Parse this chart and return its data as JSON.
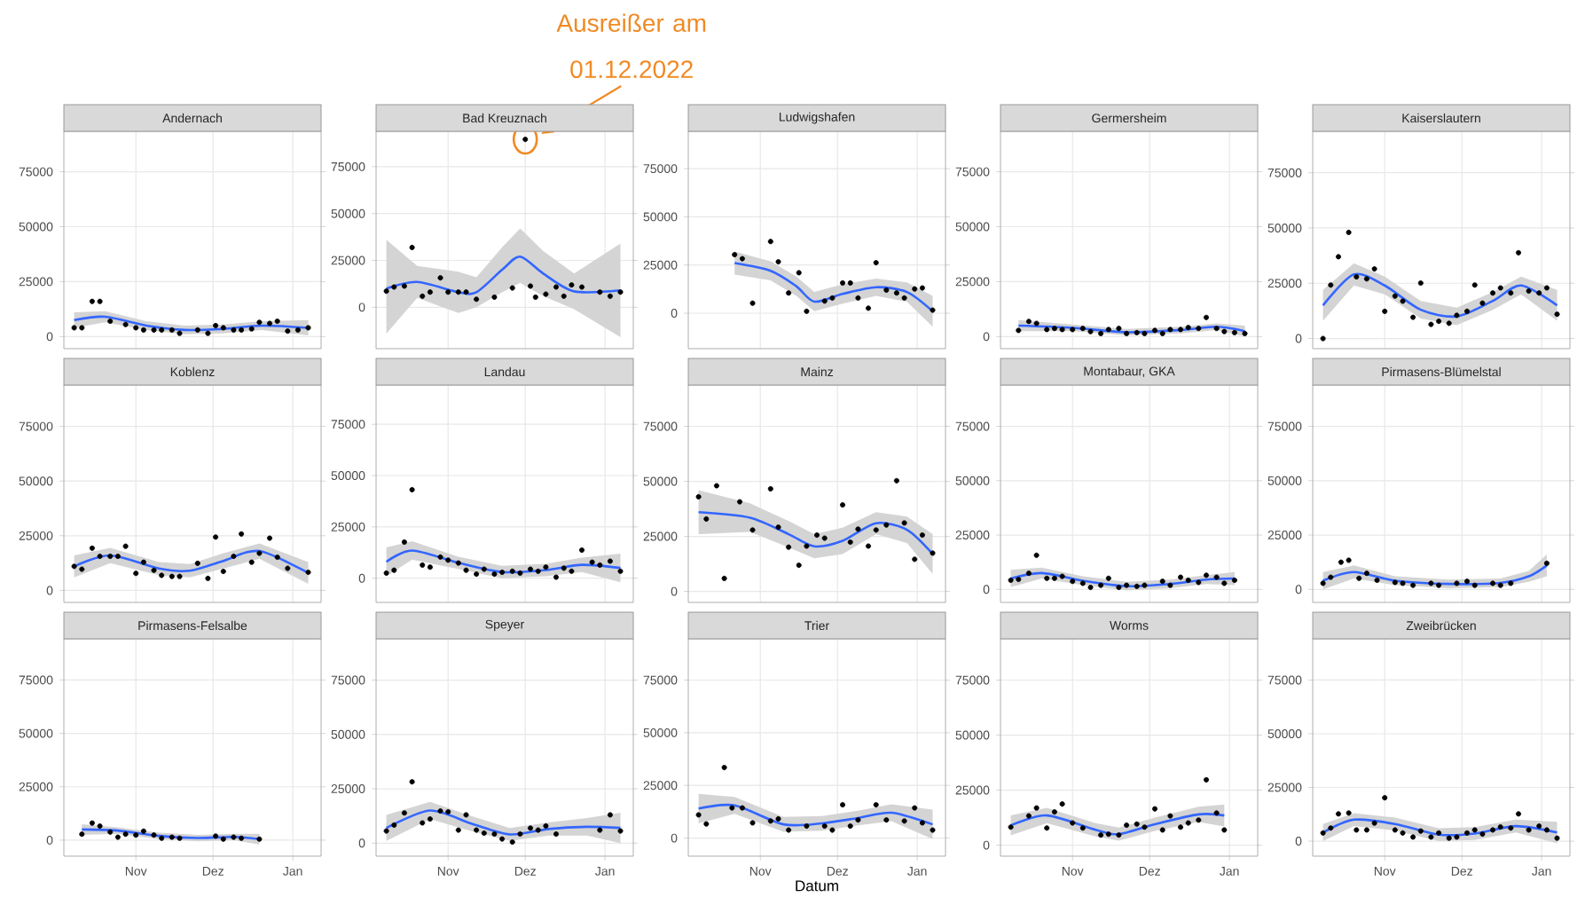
{
  "chart_data": [
    {
      "type": "scatter",
      "title": "Andernach",
      "xlim": [
        "2022-10-04",
        "2023-01-12"
      ],
      "ylim": [
        -5500,
        93400
      ],
      "xticks": [
        {
          "value": "2022-11-01",
          "label": null
        },
        {
          "value": "2022-12-01",
          "label": null
        },
        {
          "value": "2023-01-01",
          "label": null
        }
      ],
      "yticks": [
        0,
        25000,
        50000,
        75000
      ],
      "grid": true,
      "tick_labels": "y",
      "series": [
        {
          "type": "scatter",
          "color": "#000000",
          "x": [
            "2022-10-08",
            "2022-10-11",
            "2022-10-15",
            "2022-10-18",
            "2022-10-22",
            "2022-10-28",
            "2022-11-01",
            "2022-11-04",
            "2022-11-08",
            "2022-11-11",
            "2022-11-15",
            "2022-11-18",
            "2022-11-25",
            "2022-11-29",
            "2022-12-02",
            "2022-12-05",
            "2022-12-09",
            "2022-12-12",
            "2022-12-16",
            "2022-12-19",
            "2022-12-23",
            "2022-12-26",
            "2022-12-30",
            "2023-01-03",
            "2023-01-07"
          ],
          "values": [
            4000,
            4000,
            16000,
            16000,
            7000,
            5500,
            4000,
            3000,
            3000,
            3000,
            3000,
            1500,
            3000,
            1500,
            5000,
            4000,
            3000,
            3000,
            3500,
            6500,
            6000,
            7000,
            2500,
            3000,
            4000
          ]
        },
        {
          "type": "line",
          "color": "#3366ff",
          "x": [
            "2022-10-08",
            "2022-10-20",
            "2022-11-05",
            "2022-11-20",
            "2022-12-05",
            "2022-12-20",
            "2023-01-07"
          ],
          "values": [
            7500,
            9000,
            5000,
            3000,
            3500,
            5000,
            4000
          ],
          "lower": [
            4000,
            6500,
            3000,
            1000,
            1500,
            3000,
            500
          ],
          "upper": [
            11000,
            11500,
            7000,
            5000,
            5500,
            7000,
            7500
          ]
        }
      ]
    },
    {
      "type": "scatter",
      "title": "Bad Kreuznach",
      "xlim": [
        "2022-10-04",
        "2023-01-12"
      ],
      "ylim": [
        -22100,
        93900
      ],
      "xticks": [
        {
          "value": "2022-11-01",
          "label": null
        },
        {
          "value": "2022-12-01",
          "label": null
        },
        {
          "value": "2023-01-01",
          "label": null
        }
      ],
      "yticks": [
        0,
        25000,
        50000,
        75000
      ],
      "grid": true,
      "tick_labels": "y",
      "annotations": [
        {
          "text": "Ausreißer am 01.12.2022",
          "x": "2022-12-01",
          "y": 89600
        }
      ],
      "series": [
        {
          "type": "scatter",
          "color": "#000000",
          "x": [
            "2022-10-08",
            "2022-10-11",
            "2022-10-15",
            "2022-10-18",
            "2022-10-22",
            "2022-10-25",
            "2022-10-29",
            "2022-11-01",
            "2022-11-05",
            "2022-11-08",
            "2022-11-12",
            "2022-11-19",
            "2022-11-26",
            "2022-12-01",
            "2022-12-03",
            "2022-12-05",
            "2022-12-09",
            "2022-12-13",
            "2022-12-16",
            "2022-12-19",
            "2022-12-23",
            "2022-12-30",
            "2023-01-03",
            "2023-01-07"
          ],
          "values": [
            8600,
            10800,
            11300,
            31900,
            5900,
            8100,
            15700,
            8100,
            8100,
            8100,
            4300,
            5400,
            10300,
            89600,
            11300,
            5400,
            7000,
            10800,
            5900,
            11900,
            10800,
            8100,
            5900,
            8100
          ]
        },
        {
          "type": "line",
          "color": "#3366ff",
          "x": [
            "2022-10-08",
            "2022-10-20",
            "2022-11-05",
            "2022-11-12",
            "2022-11-22",
            "2022-11-29",
            "2022-12-08",
            "2022-12-20",
            "2023-01-07"
          ],
          "values": [
            10000,
            13500,
            8000,
            8000,
            20000,
            27000,
            18000,
            8500,
            9000
          ],
          "lower": [
            -14000,
            5000,
            -3000,
            0,
            8000,
            13000,
            6000,
            -1000,
            -16000
          ],
          "upper": [
            36000,
            22000,
            19000,
            16000,
            32000,
            42000,
            30000,
            18000,
            34000
          ]
        }
      ]
    },
    {
      "type": "scatter",
      "title": "Ludwigshafen",
      "xlim": [
        "2022-10-04",
        "2023-01-12"
      ],
      "ylim": [
        -18400,
        94400
      ],
      "xticks": [
        {
          "value": "2022-11-01",
          "label": null
        },
        {
          "value": "2022-12-01",
          "label": null
        },
        {
          "value": "2023-01-01",
          "label": null
        }
      ],
      "yticks": [
        0,
        25000,
        50000,
        75000
      ],
      "grid": true,
      "tick_labels": "y",
      "series": [
        {
          "type": "scatter",
          "color": "#000000",
          "x": [
            "2022-10-22",
            "2022-10-25",
            "2022-10-29",
            "2022-11-05",
            "2022-11-08",
            "2022-11-12",
            "2022-11-16",
            "2022-11-19",
            "2022-11-26",
            "2022-11-29",
            "2022-12-03",
            "2022-12-06",
            "2022-12-09",
            "2022-12-13",
            "2022-12-16",
            "2022-12-20",
            "2022-12-24",
            "2022-12-27",
            "2022-12-31",
            "2023-01-03",
            "2023-01-07"
          ],
          "values": [
            30400,
            28300,
            5200,
            37200,
            26700,
            10500,
            21000,
            1000,
            6300,
            7900,
            15700,
            15700,
            7900,
            2600,
            26200,
            12000,
            10500,
            7900,
            12600,
            13100,
            1600
          ]
        },
        {
          "type": "line",
          "color": "#3366ff",
          "x": [
            "2022-10-22",
            "2022-11-05",
            "2022-11-15",
            "2022-11-22",
            "2022-12-03",
            "2022-12-16",
            "2022-12-28",
            "2023-01-07"
          ],
          "values": [
            26000,
            22000,
            14000,
            6000,
            10000,
            13500,
            11000,
            1000
          ],
          "lower": [
            20000,
            17000,
            9000,
            1000,
            5000,
            9000,
            6000,
            -7000
          ],
          "upper": [
            32000,
            27000,
            19000,
            11000,
            15000,
            18000,
            16000,
            9000
          ]
        }
      ]
    },
    {
      "type": "scatter",
      "title": "Germersheim",
      "xlim": [
        "2022-10-04",
        "2023-01-12"
      ],
      "ylim": [
        -5500,
        93400
      ],
      "xticks": [
        {
          "value": "2022-11-01",
          "label": null
        },
        {
          "value": "2022-12-01",
          "label": null
        },
        {
          "value": "2023-01-01",
          "label": null
        }
      ],
      "yticks": [
        0,
        25000,
        50000,
        75000
      ],
      "grid": true,
      "tick_labels": "y",
      "series": [
        {
          "type": "scatter",
          "color": "#000000",
          "x": [
            "2022-10-11",
            "2022-10-15",
            "2022-10-18",
            "2022-10-22",
            "2022-10-25",
            "2022-10-28",
            "2022-11-01",
            "2022-11-05",
            "2022-11-08",
            "2022-11-12",
            "2022-11-15",
            "2022-11-19",
            "2022-11-22",
            "2022-11-26",
            "2022-11-29",
            "2022-12-03",
            "2022-12-06",
            "2022-12-09",
            "2022-12-13",
            "2022-12-16",
            "2022-12-20",
            "2022-12-23",
            "2022-12-27",
            "2022-12-30",
            "2023-01-03",
            "2023-01-07"
          ],
          "values": [
            2800,
            6900,
            6000,
            3200,
            3700,
            3200,
            3200,
            3700,
            2300,
            1400,
            3200,
            3700,
            1400,
            1800,
            1400,
            2800,
            1400,
            3200,
            3200,
            4100,
            3700,
            8700,
            3700,
            2300,
            1800,
            1400
          ]
        },
        {
          "type": "line",
          "color": "#3366ff",
          "x": [
            "2022-10-11",
            "2022-11-01",
            "2022-11-22",
            "2022-12-13",
            "2022-12-27",
            "2023-01-07"
          ],
          "values": [
            5000,
            4000,
            2000,
            3000,
            4500,
            2500
          ],
          "lower": [
            2500,
            2500,
            500,
            1500,
            3000,
            0
          ],
          "upper": [
            7500,
            5500,
            3500,
            4500,
            6000,
            5000
          ]
        }
      ]
    },
    {
      "type": "scatter",
      "title": "Kaiserslautern",
      "xlim": [
        "2022-10-04",
        "2023-01-12"
      ],
      "ylim": [
        -4600,
        93750
      ],
      "xticks": [
        {
          "value": "2022-11-01",
          "label": null
        },
        {
          "value": "2022-12-01",
          "label": null
        },
        {
          "value": "2023-01-01",
          "label": null
        }
      ],
      "yticks": [
        0,
        25000,
        50000,
        75000
      ],
      "grid": true,
      "tick_labels": "y",
      "series": [
        {
          "type": "scatter",
          "color": "#000000",
          "x": [
            "2022-10-08",
            "2022-10-11",
            "2022-10-14",
            "2022-10-18",
            "2022-10-21",
            "2022-10-25",
            "2022-10-28",
            "2022-11-01",
            "2022-11-05",
            "2022-11-08",
            "2022-11-12",
            "2022-11-15",
            "2022-11-19",
            "2022-11-22",
            "2022-11-26",
            "2022-11-29",
            "2022-12-03",
            "2022-12-06",
            "2022-12-09",
            "2022-12-13",
            "2022-12-16",
            "2022-12-20",
            "2022-12-23",
            "2022-12-27",
            "2022-12-31",
            "2023-01-03",
            "2023-01-07"
          ],
          "values": [
            0,
            24200,
            37000,
            48000,
            27900,
            27000,
            31500,
            12300,
            19200,
            16900,
            9600,
            25100,
            6400,
            7800,
            6900,
            10500,
            12300,
            24200,
            16000,
            20600,
            22900,
            20600,
            38800,
            21500,
            20600,
            22900,
            11000
          ]
        },
        {
          "type": "line",
          "color": "#3366ff",
          "x": [
            "2022-10-08",
            "2022-10-20",
            "2022-11-01",
            "2022-11-15",
            "2022-11-29",
            "2022-12-13",
            "2022-12-24",
            "2023-01-07"
          ],
          "values": [
            15000,
            29000,
            24000,
            13000,
            10000,
            17000,
            24000,
            15000
          ],
          "lower": [
            8000,
            24000,
            20000,
            9000,
            6000,
            13000,
            20000,
            8000
          ],
          "upper": [
            22000,
            34000,
            28000,
            17000,
            14000,
            21000,
            28000,
            22000
          ]
        }
      ]
    },
    {
      "type": "scatter",
      "title": "Koblenz",
      "xlim": [
        "2022-10-04",
        "2023-01-12"
      ],
      "ylim": [
        -5500,
        93900
      ],
      "xticks": [
        {
          "value": "2022-11-01",
          "label": null
        },
        {
          "value": "2022-12-01",
          "label": null
        },
        {
          "value": "2023-01-01",
          "label": null
        }
      ],
      "yticks": [
        0,
        25000,
        50000,
        75000
      ],
      "grid": true,
      "tick_labels": "y",
      "series": [
        {
          "type": "scatter",
          "color": "#000000",
          "x": [
            "2022-10-08",
            "2022-10-11",
            "2022-10-15",
            "2022-10-18",
            "2022-10-22",
            "2022-10-25",
            "2022-10-28",
            "2022-11-01",
            "2022-11-04",
            "2022-11-08",
            "2022-11-11",
            "2022-11-15",
            "2022-11-18",
            "2022-11-25",
            "2022-11-29",
            "2022-12-02",
            "2022-12-05",
            "2022-12-09",
            "2022-12-12",
            "2022-12-16",
            "2022-12-19",
            "2022-12-23",
            "2022-12-26",
            "2022-12-30",
            "2023-01-07"
          ],
          "values": [
            11000,
            9700,
            19300,
            15600,
            15600,
            15600,
            20200,
            7800,
            12900,
            9200,
            6900,
            6400,
            6400,
            12400,
            5500,
            24400,
            8700,
            15600,
            25800,
            12900,
            17000,
            23900,
            15200,
            10100,
            8300
          ]
        },
        {
          "type": "line",
          "color": "#3366ff",
          "x": [
            "2022-10-08",
            "2022-10-22",
            "2022-11-10",
            "2022-11-22",
            "2022-12-05",
            "2022-12-19",
            "2023-01-07"
          ],
          "values": [
            11000,
            16000,
            10000,
            9000,
            13500,
            18000,
            8000
          ],
          "lower": [
            6000,
            12500,
            7000,
            6000,
            10000,
            14500,
            3000
          ],
          "upper": [
            16000,
            19500,
            13000,
            12000,
            17000,
            21500,
            13000
          ]
        }
      ]
    },
    {
      "type": "scatter",
      "title": "Landau",
      "xlim": [
        "2022-10-04",
        "2023-01-12"
      ],
      "ylim": [
        -11800,
        94100
      ],
      "xticks": [
        {
          "value": "2022-11-01",
          "label": null
        },
        {
          "value": "2022-12-01",
          "label": null
        },
        {
          "value": "2023-01-01",
          "label": null
        }
      ],
      "yticks": [
        0,
        25000,
        50000,
        75000
      ],
      "grid": true,
      "tick_labels": "y",
      "series": [
        {
          "type": "scatter",
          "color": "#000000",
          "x": [
            "2022-10-08",
            "2022-10-11",
            "2022-10-15",
            "2022-10-18",
            "2022-10-22",
            "2022-10-25",
            "2022-10-29",
            "2022-11-01",
            "2022-11-05",
            "2022-11-08",
            "2022-11-12",
            "2022-11-15",
            "2022-11-19",
            "2022-11-22",
            "2022-11-26",
            "2022-11-29",
            "2022-12-03",
            "2022-12-06",
            "2022-12-09",
            "2022-12-13",
            "2022-12-16",
            "2022-12-19",
            "2022-12-23",
            "2022-12-27",
            "2022-12-30",
            "2023-01-03",
            "2023-01-07"
          ],
          "values": [
            2500,
            3900,
            17600,
            43100,
            6400,
            5400,
            10300,
            8800,
            7400,
            3900,
            2000,
            4400,
            2000,
            2900,
            3400,
            2500,
            4400,
            3400,
            5400,
            500,
            4900,
            3400,
            13700,
            7800,
            6400,
            8300,
            3400
          ]
        },
        {
          "type": "line",
          "color": "#3366ff",
          "x": [
            "2022-10-08",
            "2022-10-18",
            "2022-11-05",
            "2022-11-22",
            "2022-12-09",
            "2022-12-23",
            "2023-01-07"
          ],
          "values": [
            8000,
            13500,
            7500,
            3000,
            4000,
            6500,
            5000
          ],
          "lower": [
            1000,
            9000,
            4500,
            0,
            1000,
            3000,
            -2000
          ],
          "upper": [
            15000,
            18000,
            10500,
            6000,
            7000,
            10000,
            12000
          ]
        }
      ]
    },
    {
      "type": "scatter",
      "title": "Mainz",
      "xlim": [
        "2022-10-04",
        "2023-01-12"
      ],
      "ylim": [
        -5000,
        93750
      ],
      "xticks": [
        {
          "value": "2022-11-01",
          "label": null
        },
        {
          "value": "2022-12-01",
          "label": null
        },
        {
          "value": "2023-01-01",
          "label": null
        }
      ],
      "yticks": [
        0,
        25000,
        50000,
        75000
      ],
      "grid": true,
      "tick_labels": "y",
      "series": [
        {
          "type": "scatter",
          "color": "#000000",
          "x": [
            "2022-10-08",
            "2022-10-11",
            "2022-10-15",
            "2022-10-18",
            "2022-10-24",
            "2022-10-29",
            "2022-11-05",
            "2022-11-08",
            "2022-11-12",
            "2022-11-16",
            "2022-11-19",
            "2022-11-23",
            "2022-11-26",
            "2022-12-03",
            "2022-12-06",
            "2022-12-09",
            "2022-12-13",
            "2022-12-16",
            "2022-12-20",
            "2022-12-24",
            "2022-12-27",
            "2022-12-31",
            "2023-01-03",
            "2023-01-07"
          ],
          "values": [
            43000,
            32900,
            48000,
            5900,
            40700,
            27900,
            46600,
            29200,
            20100,
            11900,
            20600,
            25600,
            24200,
            39300,
            22400,
            28300,
            20600,
            27900,
            30200,
            50300,
            31100,
            14600,
            25600,
            17400
          ]
        },
        {
          "type": "line",
          "color": "#3366ff",
          "x": [
            "2022-10-08",
            "2022-10-28",
            "2022-11-12",
            "2022-11-22",
            "2022-12-03",
            "2022-12-16",
            "2022-12-28",
            "2023-01-07"
          ],
          "values": [
            36000,
            33500,
            26000,
            20500,
            23000,
            31000,
            28000,
            17000
          ],
          "lower": [
            26000,
            27000,
            20000,
            15000,
            17000,
            26000,
            22000,
            8000
          ],
          "upper": [
            46000,
            40000,
            32000,
            26000,
            29000,
            36000,
            34000,
            26000
          ]
        }
      ]
    },
    {
      "type": "scatter",
      "title": "Montabaur, GKA",
      "xlim": [
        "2022-10-04",
        "2023-01-12"
      ],
      "ylim": [
        -6000,
        94000
      ],
      "xticks": [
        {
          "value": "2022-11-01",
          "label": null
        },
        {
          "value": "2022-12-01",
          "label": null
        },
        {
          "value": "2023-01-01",
          "label": null
        }
      ],
      "yticks": [
        0,
        25000,
        50000,
        75000
      ],
      "grid": true,
      "tick_labels": "y",
      "series": [
        {
          "type": "scatter",
          "color": "#000000",
          "x": [
            "2022-10-08",
            "2022-10-11",
            "2022-10-15",
            "2022-10-18",
            "2022-10-22",
            "2022-10-25",
            "2022-10-28",
            "2022-11-01",
            "2022-11-05",
            "2022-11-08",
            "2022-11-12",
            "2022-11-15",
            "2022-11-19",
            "2022-11-22",
            "2022-11-26",
            "2022-11-29",
            "2022-12-06",
            "2022-12-09",
            "2022-12-13",
            "2022-12-16",
            "2022-12-20",
            "2022-12-23",
            "2022-12-27",
            "2022-12-30",
            "2023-01-03"
          ],
          "values": [
            4200,
            4600,
            7400,
            15700,
            5100,
            5100,
            6000,
            3700,
            2800,
            900,
            1900,
            5100,
            900,
            1900,
            1400,
            1900,
            3700,
            1900,
            5600,
            4200,
            3200,
            6500,
            5600,
            2800,
            4200
          ]
        },
        {
          "type": "line",
          "color": "#3366ff",
          "x": [
            "2022-10-08",
            "2022-10-20",
            "2022-11-05",
            "2022-11-22",
            "2022-12-09",
            "2022-12-23",
            "2023-01-03"
          ],
          "values": [
            5000,
            7500,
            4000,
            1500,
            2500,
            4500,
            5000
          ],
          "lower": [
            1000,
            5000,
            2000,
            -500,
            500,
            2500,
            2000
          ],
          "upper": [
            9000,
            10000,
            6000,
            3500,
            4500,
            6500,
            8000
          ]
        }
      ]
    },
    {
      "type": "scatter",
      "title": "Pirmasens-Blümelstal",
      "xlim": [
        "2022-10-04",
        "2023-01-12"
      ],
      "ylim": [
        -6000,
        94000
      ],
      "xticks": [
        {
          "value": "2022-11-01",
          "label": null
        },
        {
          "value": "2022-12-01",
          "label": null
        },
        {
          "value": "2023-01-01",
          "label": null
        }
      ],
      "yticks": [
        0,
        25000,
        50000,
        75000
      ],
      "grid": true,
      "tick_labels": "y",
      "series": [
        {
          "type": "scatter",
          "color": "#000000",
          "x": [
            "2022-10-08",
            "2022-10-11",
            "2022-10-15",
            "2022-10-18",
            "2022-10-22",
            "2022-10-25",
            "2022-10-29",
            "2022-11-05",
            "2022-11-08",
            "2022-11-12",
            "2022-11-19",
            "2022-11-22",
            "2022-11-29",
            "2022-12-03",
            "2022-12-06",
            "2022-12-13",
            "2022-12-16",
            "2022-12-20",
            "2023-01-03"
          ],
          "values": [
            2800,
            5600,
            12500,
            13400,
            5100,
            7400,
            4200,
            3200,
            2800,
            1900,
            2800,
            1900,
            2800,
            3700,
            1900,
            2800,
            1900,
            2800,
            12000
          ]
        },
        {
          "type": "line",
          "color": "#3366ff",
          "x": [
            "2022-10-08",
            "2022-10-20",
            "2022-11-05",
            "2022-11-26",
            "2022-12-16",
            "2022-12-27",
            "2023-01-03"
          ],
          "values": [
            4000,
            8000,
            4000,
            2500,
            3000,
            6000,
            11000
          ],
          "lower": [
            0,
            5000,
            2000,
            500,
            1000,
            3500,
            6000
          ],
          "upper": [
            8000,
            11000,
            6000,
            4500,
            5000,
            8500,
            16000
          ]
        }
      ]
    },
    {
      "type": "scatter",
      "title": "Pirmasens-Felsalbe",
      "xlim": [
        "2022-10-04",
        "2023-01-12"
      ],
      "ylim": [
        -7500,
        94300
      ],
      "xticks": [
        {
          "value": "2022-11-01",
          "label": "Nov"
        },
        {
          "value": "2022-12-01",
          "label": "Dez"
        },
        {
          "value": "2023-01-01",
          "label": "Jan"
        }
      ],
      "yticks": [
        0,
        25000,
        50000,
        75000
      ],
      "grid": true,
      "series": [
        {
          "type": "scatter",
          "color": "#000000",
          "x": [
            "2022-10-11",
            "2022-10-15",
            "2022-10-18",
            "2022-10-22",
            "2022-10-25",
            "2022-10-28",
            "2022-11-01",
            "2022-11-04",
            "2022-11-08",
            "2022-11-11",
            "2022-11-15",
            "2022-11-18",
            "2022-12-02",
            "2022-12-05",
            "2022-12-09",
            "2022-12-12",
            "2022-12-19"
          ],
          "values": [
            2800,
            8000,
            6600,
            3800,
            1400,
            2800,
            2400,
            4200,
            2400,
            900,
            1400,
            900,
            1900,
            500,
            1400,
            900,
            500
          ]
        },
        {
          "type": "line",
          "color": "#3366ff",
          "x": [
            "2022-10-11",
            "2022-10-25",
            "2022-11-10",
            "2022-11-25",
            "2022-12-09",
            "2022-12-19"
          ],
          "values": [
            5000,
            4500,
            2000,
            1000,
            1500,
            500
          ],
          "lower": [
            2500,
            3000,
            500,
            -500,
            0,
            -2000
          ],
          "upper": [
            7500,
            6000,
            3500,
            2500,
            3000,
            3000
          ]
        }
      ]
    },
    {
      "type": "scatter",
      "title": "Speyer",
      "xlim": [
        "2022-10-04",
        "2023-01-12"
      ],
      "ylim": [
        -6000,
        94000
      ],
      "xticks": [
        {
          "value": "2022-11-01",
          "label": "Nov"
        },
        {
          "value": "2022-12-01",
          "label": "Dez"
        },
        {
          "value": "2023-01-01",
          "label": "Jan"
        }
      ],
      "yticks": [
        0,
        25000,
        50000,
        75000
      ],
      "grid": true,
      "series": [
        {
          "type": "scatter",
          "color": "#000000",
          "x": [
            "2022-10-08",
            "2022-10-11",
            "2022-10-15",
            "2022-10-18",
            "2022-10-22",
            "2022-10-25",
            "2022-10-29",
            "2022-11-01",
            "2022-11-05",
            "2022-11-08",
            "2022-11-12",
            "2022-11-15",
            "2022-11-19",
            "2022-11-22",
            "2022-11-26",
            "2022-11-29",
            "2022-12-03",
            "2022-12-06",
            "2022-12-09",
            "2022-12-13",
            "2022-12-30",
            "2023-01-03",
            "2023-01-07"
          ],
          "values": [
            5600,
            8300,
            13900,
            28200,
            9300,
            11100,
            14800,
            14400,
            6000,
            13000,
            6000,
            4600,
            4200,
            1900,
            500,
            4200,
            6900,
            6000,
            7900,
            4200,
            6000,
            13000,
            5600
          ]
        },
        {
          "type": "line",
          "color": "#3366ff",
          "x": [
            "2022-10-08",
            "2022-10-25",
            "2022-11-10",
            "2022-11-25",
            "2022-12-10",
            "2022-12-25",
            "2023-01-07"
          ],
          "values": [
            7000,
            15000,
            9000,
            4000,
            6500,
            7500,
            7000
          ],
          "lower": [
            1000,
            11000,
            5500,
            1000,
            3500,
            3500,
            0
          ],
          "upper": [
            13000,
            19000,
            12500,
            7000,
            9500,
            11500,
            14000
          ]
        }
      ]
    },
    {
      "type": "scatter",
      "title": "Trier",
      "xlabel": "Datum",
      "xlim": [
        "2022-10-04",
        "2023-01-12"
      ],
      "ylim": [
        -8600,
        94600
      ],
      "xticks": [
        {
          "value": "2022-11-01",
          "label": "Nov"
        },
        {
          "value": "2022-12-01",
          "label": "Dez"
        },
        {
          "value": "2023-01-01",
          "label": "Jan"
        }
      ],
      "yticks": [
        0,
        25000,
        50000,
        75000
      ],
      "grid": true,
      "series": [
        {
          "type": "scatter",
          "color": "#000000",
          "x": [
            "2022-10-08",
            "2022-10-11",
            "2022-10-18",
            "2022-10-21",
            "2022-10-25",
            "2022-10-29",
            "2022-11-05",
            "2022-11-08",
            "2022-11-12",
            "2022-11-19",
            "2022-11-26",
            "2022-11-29",
            "2022-12-03",
            "2022-12-06",
            "2022-12-09",
            "2022-12-16",
            "2022-12-20",
            "2022-12-27",
            "2022-12-31",
            "2023-01-03",
            "2023-01-07"
          ],
          "values": [
            11000,
            6700,
            33500,
            14300,
            14300,
            7200,
            8100,
            9100,
            3800,
            5700,
            5700,
            3800,
            15800,
            5700,
            8600,
            15800,
            8600,
            8100,
            14300,
            7200,
            3800
          ]
        },
        {
          "type": "line",
          "color": "#3366ff",
          "x": [
            "2022-10-08",
            "2022-10-22",
            "2022-11-10",
            "2022-11-25",
            "2022-12-09",
            "2022-12-22",
            "2023-01-07"
          ],
          "values": [
            14000,
            15500,
            6500,
            7000,
            9500,
            12000,
            6500
          ],
          "lower": [
            7000,
            11500,
            3000,
            3500,
            6000,
            8000,
            -500
          ],
          "upper": [
            21000,
            19500,
            10000,
            10500,
            13000,
            16000,
            13500
          ]
        }
      ]
    },
    {
      "type": "scatter",
      "title": "Worms",
      "xlim": [
        "2022-10-04",
        "2023-01-12"
      ],
      "ylim": [
        -5000,
        93750
      ],
      "xticks": [
        {
          "value": "2022-11-01",
          "label": "Nov"
        },
        {
          "value": "2022-12-01",
          "label": "Dez"
        },
        {
          "value": "2023-01-01",
          "label": "Jan"
        }
      ],
      "yticks": [
        0,
        25000,
        50000,
        75000
      ],
      "grid": true,
      "series": [
        {
          "type": "scatter",
          "color": "#000000",
          "x": [
            "2022-10-08",
            "2022-10-15",
            "2022-10-18",
            "2022-10-22",
            "2022-10-25",
            "2022-10-28",
            "2022-11-01",
            "2022-11-05",
            "2022-11-12",
            "2022-11-15",
            "2022-11-19",
            "2022-11-22",
            "2022-11-26",
            "2022-11-29",
            "2022-12-03",
            "2022-12-06",
            "2022-12-09",
            "2022-12-13",
            "2022-12-16",
            "2022-12-20",
            "2022-12-23",
            "2022-12-27",
            "2022-12-30"
          ],
          "values": [
            8200,
            13300,
            16900,
            7800,
            15100,
            18700,
            10100,
            7800,
            4600,
            5000,
            4600,
            9100,
            9600,
            8200,
            16500,
            6900,
            13300,
            8200,
            10100,
            11400,
            29700,
            14600,
            6900
          ]
        },
        {
          "type": "line",
          "color": "#3366ff",
          "x": [
            "2022-10-08",
            "2022-10-22",
            "2022-11-10",
            "2022-11-19",
            "2022-12-03",
            "2022-12-20",
            "2022-12-30"
          ],
          "values": [
            9000,
            13500,
            7000,
            5000,
            9500,
            14000,
            13500
          ],
          "lower": [
            4500,
            10000,
            4000,
            2000,
            6500,
            10500,
            8500
          ],
          "upper": [
            13500,
            17000,
            10000,
            8000,
            12500,
            17500,
            18500
          ]
        }
      ]
    },
    {
      "type": "scatter",
      "title": "Zweibrücken",
      "xlim": [
        "2022-10-04",
        "2023-01-12"
      ],
      "ylim": [
        -7000,
        94200
      ],
      "xticks": [
        {
          "value": "2022-11-01",
          "label": "Nov"
        },
        {
          "value": "2022-12-01",
          "label": "Dez"
        },
        {
          "value": "2023-01-01",
          "label": "Jan"
        }
      ],
      "yticks": [
        0,
        25000,
        50000,
        75000
      ],
      "grid": true,
      "series": [
        {
          "type": "scatter",
          "color": "#000000",
          "x": [
            "2022-10-08",
            "2022-10-11",
            "2022-10-14",
            "2022-10-18",
            "2022-10-21",
            "2022-10-25",
            "2022-10-28",
            "2022-11-01",
            "2022-11-05",
            "2022-11-08",
            "2022-11-12",
            "2022-11-15",
            "2022-11-19",
            "2022-11-22",
            "2022-11-26",
            "2022-11-29",
            "2022-12-03",
            "2022-12-06",
            "2022-12-09",
            "2022-12-13",
            "2022-12-16",
            "2022-12-20",
            "2022-12-23",
            "2022-12-27",
            "2022-12-31",
            "2023-01-03",
            "2023-01-07"
          ],
          "values": [
            3800,
            6100,
            12700,
            13100,
            5200,
            5200,
            8400,
            20200,
            5200,
            3800,
            1900,
            4700,
            1900,
            3800,
            1400,
            1900,
            3800,
            5200,
            3300,
            5200,
            6600,
            6100,
            12700,
            5200,
            7000,
            5200,
            1400
          ]
        },
        {
          "type": "line",
          "color": "#3366ff",
          "x": [
            "2022-10-08",
            "2022-10-20",
            "2022-11-05",
            "2022-11-22",
            "2022-12-06",
            "2022-12-22",
            "2023-01-07"
          ],
          "values": [
            4000,
            10000,
            8000,
            3000,
            3500,
            7000,
            4000
          ],
          "lower": [
            0,
            7000,
            5000,
            0,
            500,
            4000,
            -1000
          ],
          "upper": [
            8000,
            13000,
            11000,
            6000,
            6500,
            10000,
            9000
          ]
        }
      ]
    }
  ]
}
